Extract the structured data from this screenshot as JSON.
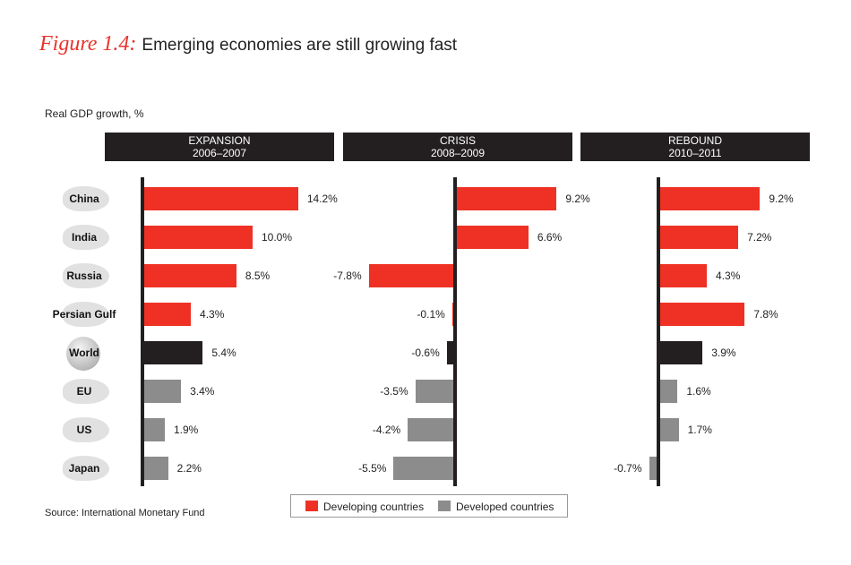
{
  "title": {
    "figure_label": "Figure 1.4:",
    "text": "Emerging economies are still growing fast"
  },
  "source": "Source: International Monetary Fund",
  "colors": {
    "developing": "#ee3124",
    "developed": "#8c8c8c",
    "world": "#231f20",
    "header_bg": "#231f20"
  },
  "chart_data": {
    "type": "bar",
    "orientation": "horizontal",
    "ylabel": "Real GDP growth, %",
    "categories": [
      "China",
      "India",
      "Russia",
      "Persian Gulf",
      "World",
      "EU",
      "US",
      "Japan"
    ],
    "category_groups": [
      "developing",
      "developing",
      "developing",
      "developing",
      "world",
      "developed",
      "developed",
      "developed"
    ],
    "panels": [
      {
        "name": "EXPANSION",
        "period": "2006–2007",
        "values": [
          14.2,
          10.0,
          8.5,
          4.3,
          5.4,
          3.4,
          1.9,
          2.2
        ],
        "labels": [
          "14.2%",
          "10.0%",
          "8.5%",
          "4.3%",
          "5.4%",
          "3.4%",
          "1.9%",
          "2.2%"
        ]
      },
      {
        "name": "CRISIS",
        "period": "2008–2009",
        "values": [
          9.2,
          6.6,
          -7.8,
          -0.1,
          -0.6,
          -3.5,
          -4.2,
          -5.5
        ],
        "labels": [
          "9.2%",
          "6.6%",
          "-7.8%",
          "-0.1%",
          "-0.6%",
          "-3.5%",
          "-4.2%",
          "-5.5%"
        ]
      },
      {
        "name": "REBOUND",
        "period": "2010–2011",
        "values": [
          9.2,
          7.2,
          4.3,
          7.8,
          3.9,
          1.6,
          1.7,
          -0.7
        ],
        "labels": [
          "9.2%",
          "7.2%",
          "4.3%",
          "7.8%",
          "3.9%",
          "1.6%",
          "1.7%",
          "-0.7%"
        ]
      }
    ],
    "legend": [
      {
        "label": "Developing countries",
        "group": "developing"
      },
      {
        "label": "Developed countries",
        "group": "developed"
      }
    ]
  }
}
